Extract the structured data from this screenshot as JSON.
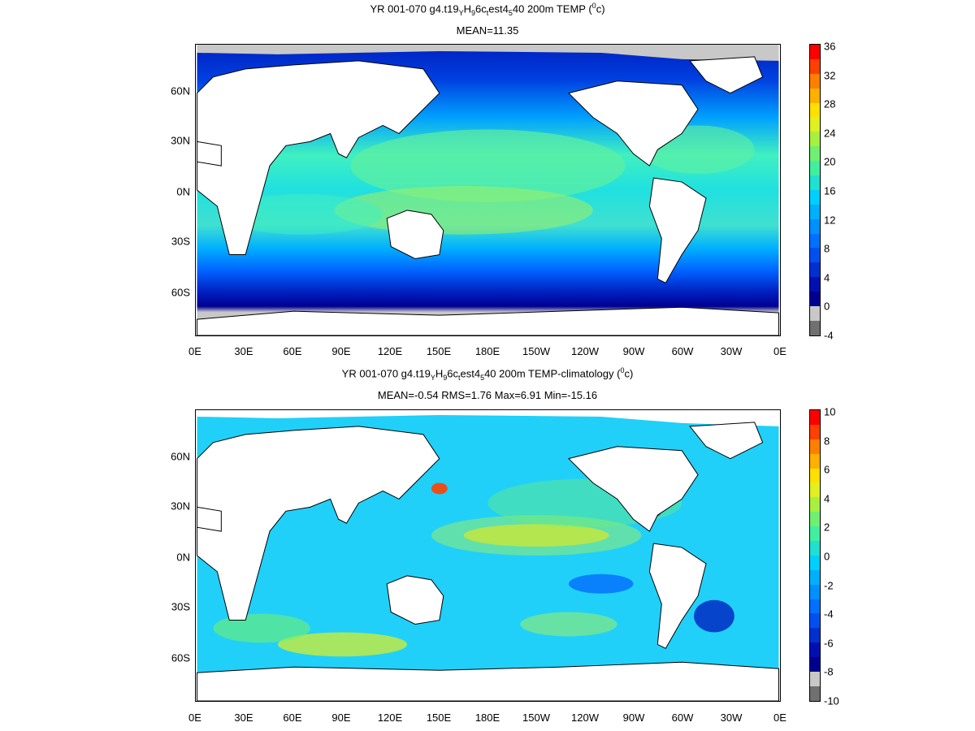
{
  "panels": [
    {
      "title_main": "YR 001-070 g4.t19",
      "title_parts": [
        "YR 001-070 g4.t19",
        "Y",
        "H",
        "9",
        "6c",
        "t",
        "est4",
        "5",
        "40 200m TEMP (",
        "0",
        "c)"
      ],
      "subtitle": "MEAN=11.35",
      "colorbar": {
        "labels": [
          "36",
          "32",
          "28",
          "24",
          "20",
          "16",
          "12",
          "8",
          "4",
          "0",
          "-4"
        ],
        "colors": [
          "#ff0000",
          "#ff4000",
          "#ff8000",
          "#ffb000",
          "#ffe000",
          "#e0f020",
          "#a8f040",
          "#70f070",
          "#40f0a0",
          "#20e0d0",
          "#00d0ff",
          "#00b0ff",
          "#0090ff",
          "#0070ff",
          "#0050f0",
          "#0030d0",
          "#0010b0",
          "#000090",
          "#c8c8c8",
          "#707070"
        ]
      }
    },
    {
      "title_parts": [
        "YR 001-070 g4.t19",
        "Y",
        "H",
        "9",
        "6c",
        "t",
        "est4",
        "5",
        "40 200m TEMP-climatology (",
        "0",
        "c)"
      ],
      "subtitle": "MEAN=-0.54   RMS=1.76   Max=6.91   Min=-15.16",
      "colorbar": {
        "labels": [
          "10",
          "8",
          "6",
          "4",
          "2",
          "0",
          "-2",
          "-4",
          "-6",
          "-8",
          "-10"
        ],
        "colors": [
          "#ff0000",
          "#ff4000",
          "#ff8000",
          "#ffb000",
          "#ffe000",
          "#e0f020",
          "#a8f040",
          "#70f070",
          "#40f0a0",
          "#20e0d0",
          "#00d0ff",
          "#00b0ff",
          "#0090ff",
          "#0070ff",
          "#0050f0",
          "#0030d0",
          "#0010b0",
          "#000090",
          "#c8c8c8",
          "#707070"
        ]
      }
    }
  ],
  "x_ticks": [
    "0E",
    "30E",
    "60E",
    "90E",
    "120E",
    "150E",
    "180E",
    "150W",
    "120W",
    "90W",
    "60W",
    "30W",
    "0E"
  ],
  "y_ticks": [
    "60N",
    "30N",
    "0N",
    "30S",
    "60S"
  ]
}
